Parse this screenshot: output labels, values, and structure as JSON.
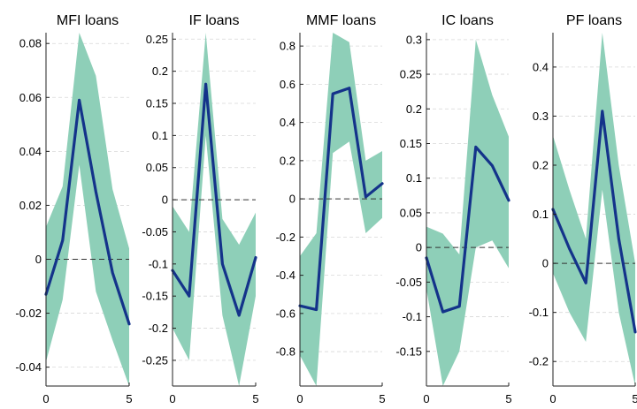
{
  "chart_data": [
    {
      "type": "line",
      "title": "MFI loans",
      "x": [
        0,
        1,
        2,
        3,
        4,
        5
      ],
      "xticks": [
        0,
        5
      ],
      "ylim": [
        -0.047,
        0.084
      ],
      "yticks": [
        -0.04,
        -0.02,
        0,
        0.02,
        0.04,
        0.06,
        0.08
      ],
      "ytick_labels": [
        "-0.04",
        "-0.02",
        "0",
        "0.02",
        "0.04",
        "0.06",
        "0.08"
      ],
      "median": [
        -0.013,
        0.007,
        0.059,
        0.025,
        -0.005,
        -0.024
      ],
      "band_upper": [
        0.012,
        0.027,
        0.084,
        0.068,
        0.026,
        0.004
      ],
      "band_lower": [
        -0.038,
        -0.015,
        0.035,
        -0.012,
        -0.03,
        -0.047
      ],
      "zero_line": 0
    },
    {
      "type": "line",
      "title": "IF loans",
      "x": [
        0,
        1,
        2,
        3,
        4,
        5
      ],
      "xticks": [
        0,
        5
      ],
      "ylim": [
        -0.29,
        0.26
      ],
      "yticks": [
        -0.25,
        -0.2,
        -0.15,
        -0.1,
        -0.05,
        0,
        0.05,
        0.1,
        0.15,
        0.2,
        0.25
      ],
      "ytick_labels": [
        "-0.25",
        "-0.2",
        "-0.15",
        "-0.1",
        "-0.05",
        "0",
        "0.05",
        "0.1",
        "0.15",
        "0.2",
        "0.25"
      ],
      "median": [
        -0.11,
        -0.15,
        0.18,
        -0.1,
        -0.18,
        -0.09
      ],
      "band_upper": [
        -0.01,
        -0.05,
        0.26,
        -0.03,
        -0.07,
        -0.02
      ],
      "band_lower": [
        -0.2,
        -0.25,
        0.1,
        -0.18,
        -0.29,
        -0.15
      ],
      "zero_line": 0
    },
    {
      "type": "line",
      "title": "MMF loans",
      "x": [
        0,
        1,
        2,
        3,
        4,
        5
      ],
      "xticks": [
        0,
        5
      ],
      "ylim": [
        -0.98,
        0.87
      ],
      "yticks": [
        -0.8,
        -0.6,
        -0.4,
        -0.2,
        0,
        0.2,
        0.4,
        0.6,
        0.8
      ],
      "ytick_labels": [
        "-0.8",
        "-0.6",
        "-0.4",
        "-0.2",
        "0",
        "0.2",
        "0.4",
        "0.6",
        "0.8"
      ],
      "median": [
        -0.56,
        -0.58,
        0.55,
        0.58,
        0.01,
        0.08
      ],
      "band_upper": [
        -0.3,
        -0.18,
        0.87,
        0.82,
        0.2,
        0.25
      ],
      "band_lower": [
        -0.82,
        -0.98,
        0.24,
        0.3,
        -0.18,
        -0.1
      ],
      "zero_line": 0
    },
    {
      "type": "line",
      "title": "IC loans",
      "x": [
        0,
        1,
        2,
        3,
        4,
        5
      ],
      "xticks": [
        0,
        5
      ],
      "ylim": [
        -0.2,
        0.31
      ],
      "yticks": [
        -0.15,
        -0.1,
        -0.05,
        0,
        0.05,
        0.1,
        0.15,
        0.2,
        0.25,
        0.3
      ],
      "ytick_labels": [
        "-0.15",
        "-0.1",
        "-0.05",
        "0",
        "0.05",
        "0.1",
        "0.15",
        "0.2",
        "0.25",
        "0.3"
      ],
      "median": [
        -0.015,
        -0.093,
        -0.085,
        0.145,
        0.118,
        0.068
      ],
      "band_upper": [
        0.03,
        0.02,
        -0.01,
        0.3,
        0.22,
        0.16
      ],
      "band_lower": [
        -0.06,
        -0.2,
        -0.15,
        0.0,
        0.01,
        -0.03
      ],
      "zero_line": 0
    },
    {
      "type": "line",
      "title": "PF loans",
      "x": [
        0,
        1,
        2,
        3,
        4,
        5
      ],
      "xticks": [
        0,
        5
      ],
      "ylim": [
        -0.25,
        0.47
      ],
      "yticks": [
        -0.2,
        -0.1,
        0,
        0.1,
        0.2,
        0.3,
        0.4
      ],
      "ytick_labels": [
        "-0.2",
        "-0.1",
        "0",
        "0.1",
        "0.2",
        "0.3",
        "0.4"
      ],
      "median": [
        0.11,
        0.03,
        -0.04,
        0.31,
        0.05,
        -0.14
      ],
      "band_upper": [
        0.26,
        0.15,
        0.05,
        0.47,
        0.2,
        0.0
      ],
      "band_lower": [
        -0.02,
        -0.1,
        -0.16,
        0.15,
        -0.1,
        -0.25
      ],
      "zero_line": 0
    }
  ],
  "colors": {
    "band": "#8ecfb8",
    "median": "#14338a",
    "zero_line": "#333333",
    "grid": "#d8d8d8",
    "axis": "#222222"
  }
}
